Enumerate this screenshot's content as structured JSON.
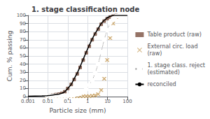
{
  "chart_data": {
    "type": "line",
    "title": "1. stage classification node",
    "xlabel": "Particle size (mm)",
    "ylabel": "Cum. % passing",
    "log": "x",
    "grid": true,
    "legend": "right",
    "xlim": [
      0.001,
      100
    ],
    "xticks": [
      0.001,
      0.01,
      0.1,
      1,
      10,
      100
    ],
    "ylim": [
      0,
      100
    ],
    "yticks": [
      0,
      10,
      20,
      30,
      40,
      50,
      60,
      70,
      80,
      90,
      100
    ],
    "series": [
      {
        "name": "Table product (raw)",
        "type": "scatter",
        "marker": "square",
        "color": "#7a5040",
        "x": [
          0.009,
          0.013,
          0.018,
          0.025,
          0.036,
          0.05,
          0.071,
          0.1,
          0.15,
          0.21,
          0.3,
          0.42,
          0.6,
          0.85,
          1.2,
          1.7,
          2.4,
          3.4,
          4.8,
          6.8,
          9.6,
          13.5,
          19,
          27,
          38
        ],
        "values": [
          1,
          1.5,
          2,
          2.5,
          3,
          4,
          6,
          10,
          15,
          21,
          28,
          36,
          45,
          54,
          62,
          70,
          77,
          83,
          89,
          93,
          96,
          98,
          99,
          100,
          100
        ]
      },
      {
        "name": "External circ. load\n(raw)",
        "type": "scatter",
        "marker": "x",
        "color": "#c8a060",
        "x": [
          0.009,
          0.013,
          0.018,
          0.025,
          0.036,
          0.05,
          0.071,
          0.1,
          0.15,
          0.21,
          0.3,
          0.42,
          0.6,
          0.85,
          1.2,
          1.7,
          2.4,
          3.4,
          4.8,
          6.8,
          9.6,
          13.5,
          19,
          27
        ],
        "values": [
          0.5,
          0.5,
          0.5,
          0.5,
          0.5,
          0.5,
          0.5,
          0.5,
          0.5,
          0.5,
          0.5,
          0.5,
          0.5,
          0.5,
          0.5,
          1,
          1.5,
          3,
          8,
          22,
          45,
          72,
          90,
          98
        ]
      },
      {
        "name": "1. stage class. reject\n(estimated)",
        "type": "line",
        "marker": "circle",
        "line_style": "dotted",
        "color": "#888888",
        "x": [
          0.009,
          0.013,
          0.018,
          0.025,
          0.036,
          0.05,
          0.071,
          0.1,
          0.15,
          0.21,
          0.3,
          0.42,
          0.6,
          0.85,
          1.2,
          1.7,
          2.4,
          3.4,
          4.8,
          6.8,
          9.6,
          13.5,
          19,
          27,
          38,
          54,
          76
        ],
        "values": [
          1,
          1,
          1,
          1,
          1,
          1,
          1,
          1,
          1.5,
          2,
          3,
          4,
          6,
          9,
          14,
          20,
          29,
          40,
          55,
          70,
          82,
          91,
          96,
          99,
          100,
          100,
          100
        ]
      },
      {
        "name": "reconciled",
        "type": "line",
        "line_style": "solid",
        "color": "#000000",
        "x": [
          0.001,
          0.005,
          0.009,
          0.013,
          0.018,
          0.025,
          0.036,
          0.05,
          0.071,
          0.1,
          0.15,
          0.21,
          0.3,
          0.42,
          0.6,
          0.85,
          1.2,
          1.7,
          2.4,
          3.4,
          4.8,
          6.8,
          9.6,
          13.5,
          19,
          27,
          38,
          54,
          76,
          100
        ],
        "values": [
          0.5,
          0.8,
          1,
          1.5,
          2,
          2.5,
          3,
          4,
          6,
          10,
          15,
          22,
          29,
          37,
          46,
          55,
          63,
          71,
          78,
          84,
          90,
          94,
          97,
          99,
          100,
          100,
          100,
          100,
          100,
          100
        ]
      }
    ]
  }
}
